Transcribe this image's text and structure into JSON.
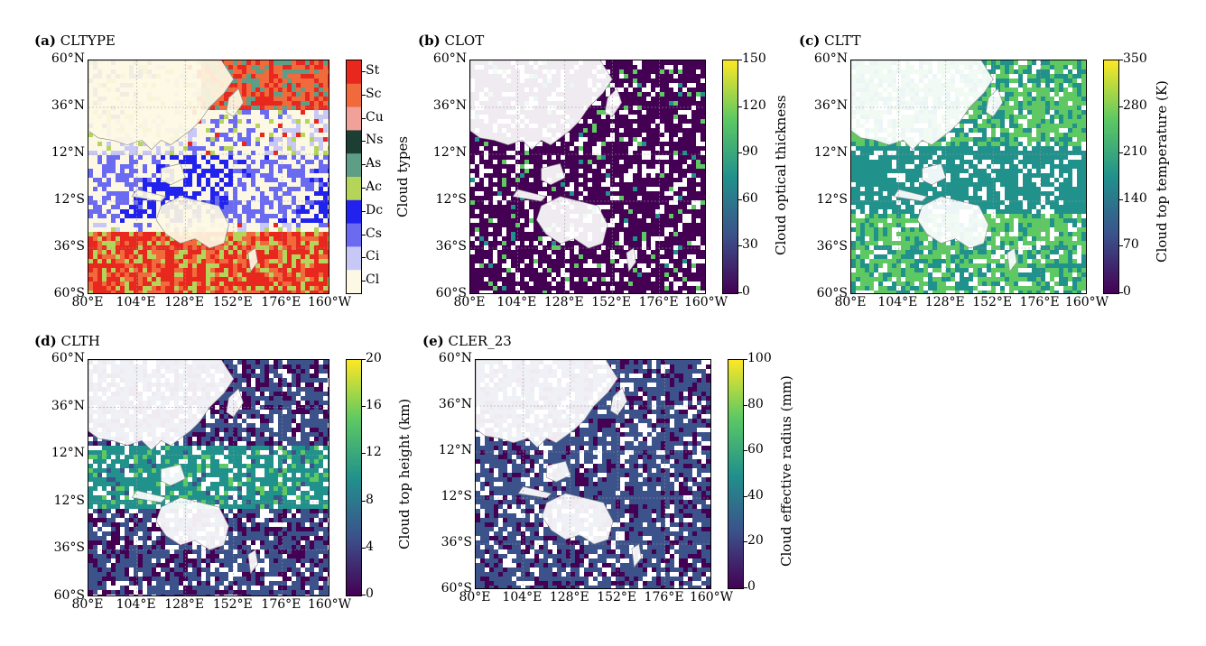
{
  "lon_ticks": [
    "80°E",
    "104°E",
    "128°E",
    "152°E",
    "176°E",
    "160°W"
  ],
  "lat_ticks": [
    "60°N",
    "36°N",
    "12°N",
    "12°S",
    "36°S",
    "60°S"
  ],
  "panels": [
    {
      "id": "a",
      "label": "(a)",
      "name": "CLTYPE",
      "cbar_title": "Cloud types",
      "kind": "categorical",
      "categories": [
        "St",
        "Sc",
        "Cu",
        "Ns",
        "As",
        "Ac",
        "Dc",
        "Cs",
        "Ci",
        "Cl"
      ],
      "colors": [
        "#e8281e",
        "#f06a3c",
        "#f2a09a",
        "#1d3f33",
        "#5f9e86",
        "#b4d45a",
        "#2222ee",
        "#6b6bf2",
        "#c8c8f6",
        "#fdf8e4"
      ]
    },
    {
      "id": "b",
      "label": "(b)",
      "name": "CLOT",
      "cbar_title": "Cloud optical thickness",
      "kind": "continuous",
      "ticks": [
        "150",
        "120",
        "90",
        "60",
        "30",
        "0"
      ]
    },
    {
      "id": "c",
      "label": "(c)",
      "name": "CLTT",
      "cbar_title": "Cloud top temperature (K)",
      "kind": "continuous",
      "ticks": [
        "350",
        "280",
        "210",
        "140",
        "70",
        "0"
      ]
    },
    {
      "id": "d",
      "label": "(d)",
      "name": "CLTH",
      "cbar_title": "Cloud top height (km)",
      "kind": "continuous",
      "ticks": [
        "20",
        "16",
        "12",
        "8",
        "4",
        "0"
      ]
    },
    {
      "id": "e",
      "label": "(e)",
      "name": "CLER_23",
      "cbar_title": "Cloud effective radius (mm)",
      "kind": "continuous",
      "ticks": [
        "100",
        "80",
        "60",
        "40",
        "20",
        "0"
      ]
    }
  ],
  "colors": {
    "viridis": [
      "#440154",
      "#3b528b",
      "#21918c",
      "#5ec962",
      "#fde725"
    ],
    "land_gray": "#d8d8d8"
  },
  "chart_data": [
    {
      "type": "heatmap",
      "title": "(a) CLTYPE",
      "xlabel": "",
      "ylabel": "",
      "colorbar_label": "Cloud types",
      "x_ticks": [
        "80°E",
        "104°E",
        "128°E",
        "152°E",
        "176°E",
        "160°W"
      ],
      "y_ticks": [
        "60°N",
        "36°N",
        "12°N",
        "12°S",
        "36°S",
        "60°S"
      ],
      "categories": [
        "St",
        "Sc",
        "Cu",
        "Ns",
        "As",
        "Ac",
        "Dc",
        "Cs",
        "Ci",
        "Cl"
      ]
    },
    {
      "type": "heatmap",
      "title": "(b) CLOT",
      "colorbar_label": "Cloud optical thickness",
      "colorbar_range": [
        0,
        150
      ],
      "colorbar_ticks": [
        0,
        30,
        60,
        90,
        120,
        150
      ]
    },
    {
      "type": "heatmap",
      "title": "(c) CLTT",
      "colorbar_label": "Cloud top temperature (K)",
      "colorbar_range": [
        0,
        350
      ],
      "colorbar_ticks": [
        0,
        70,
        140,
        210,
        280,
        350
      ]
    },
    {
      "type": "heatmap",
      "title": "(d) CLTH",
      "colorbar_label": "Cloud top height (km)",
      "colorbar_range": [
        0,
        20
      ],
      "colorbar_ticks": [
        0,
        4,
        8,
        12,
        16,
        20
      ]
    },
    {
      "type": "heatmap",
      "title": "(e) CLER_23",
      "colorbar_label": "Cloud effective radius (mm)",
      "colorbar_range": [
        0,
        100
      ],
      "colorbar_ticks": [
        0,
        20,
        40,
        60,
        80,
        100
      ]
    }
  ]
}
